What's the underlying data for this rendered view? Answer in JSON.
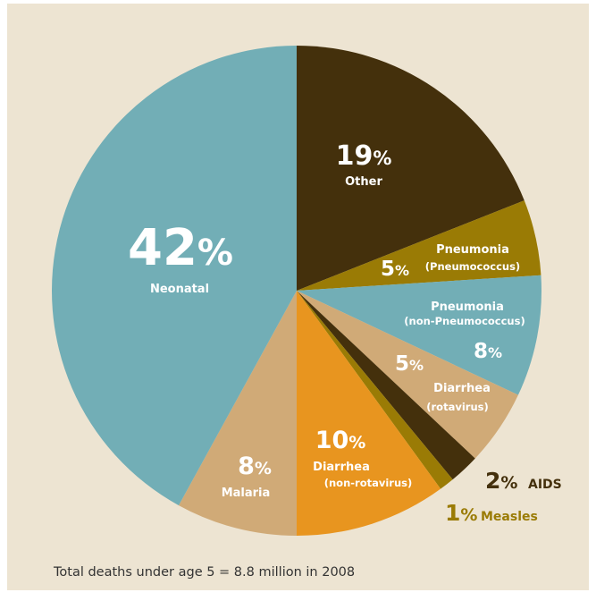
{
  "chart_data": {
    "type": "pie",
    "title": "",
    "slices": [
      {
        "name": "Other",
        "value": 19,
        "pct_label": "19%",
        "label_lines": [
          "Other"
        ],
        "color": "#44300c"
      },
      {
        "name": "Pneumonia (Pneumococcus)",
        "value": 5,
        "pct_label": "5%",
        "label_lines": [
          "Pneumonia",
          "(Pneumococcus)"
        ],
        "color": "#9a7b05"
      },
      {
        "name": "Pneumonia (non-Pneumococcus)",
        "value": 8,
        "pct_label": "8%",
        "label_lines": [
          "Pneumonia",
          "(non-Pneumococcus)"
        ],
        "color": "#72aeb6"
      },
      {
        "name": "Diarrhea (rotavirus)",
        "value": 5,
        "pct_label": "5%",
        "label_lines": [
          "Diarrhea",
          "(rotavirus)"
        ],
        "color": "#d0aa77"
      },
      {
        "name": "AIDS",
        "value": 2,
        "pct_label": "2%",
        "label_lines": [
          "AIDS"
        ],
        "color": "#44300c"
      },
      {
        "name": "Measles",
        "value": 1,
        "pct_label": "1%",
        "label_lines": [
          "Measles"
        ],
        "color": "#9a7b05"
      },
      {
        "name": "Diarrhea (non-rotavirus)",
        "value": 10,
        "pct_label": "10%",
        "label_lines": [
          "Diarrhea",
          "(non-rotavirus)"
        ],
        "color": "#e8951f"
      },
      {
        "name": "Malaria",
        "value": 8,
        "pct_label": "8%",
        "label_lines": [
          "Malaria"
        ],
        "color": "#d0aa77"
      },
      {
        "name": "Neonatal",
        "value": 42,
        "pct_label": "42%",
        "label_lines": [
          "Neonatal"
        ],
        "color": "#72aeb6"
      }
    ]
  },
  "footnote": "Total deaths under age 5 = 8.8 million in 2008",
  "colors": {
    "background": "#ede4d2",
    "label_light": "#ffffff",
    "label_dark": "#44300c",
    "label_gold": "#9a7b05"
  }
}
